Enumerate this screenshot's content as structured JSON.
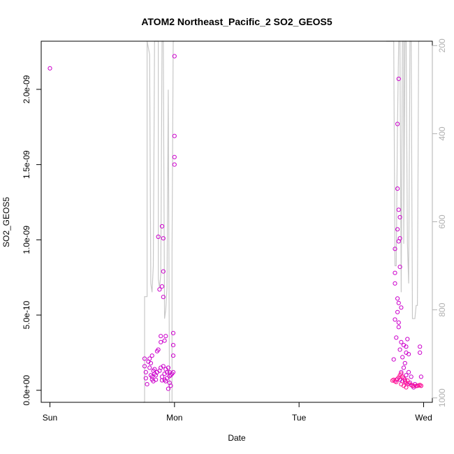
{
  "chart_data": {
    "type": "scatter",
    "title": "ATOM2 Northeast_Pacific_2 SO2_GEOS5",
    "xlabel": "Date",
    "ylabel": "SO2_GEOS5",
    "x_ticks": [
      {
        "value": 0,
        "label": "Sun"
      },
      {
        "value": 1,
        "label": "Mon"
      },
      {
        "value": 2,
        "label": "Tue"
      },
      {
        "value": 3,
        "label": "Wed"
      }
    ],
    "y_ticks": [
      {
        "value": 0,
        "label": "0.0e+00"
      },
      {
        "value": 5e-10,
        "label": "5.0e-10"
      },
      {
        "value": 1e-09,
        "label": "1.0e-09"
      },
      {
        "value": 1.5e-09,
        "label": "1.5e-09"
      },
      {
        "value": 2e-09,
        "label": "2.0e-09"
      }
    ],
    "y2_ticks": [
      {
        "value": 200,
        "label": "200"
      },
      {
        "value": 400,
        "label": "400"
      },
      {
        "value": 600,
        "label": "600"
      },
      {
        "value": 800,
        "label": "800"
      },
      {
        "value": 1000,
        "label": "1000"
      }
    ],
    "xlim": [
      -0.07,
      3.07
    ],
    "ylim": [
      -8e-11,
      2.32e-09
    ],
    "y2lim": [
      1010,
      190
    ],
    "colors": {
      "points": "#cc00cc",
      "points_alt": "#ff1493",
      "line": "#c8c8c8",
      "right_axis": "#b0b0b0"
    },
    "series": [
      {
        "marker": "circle",
        "axis": "left",
        "points": [
          [
            0.0,
            2.14e-09
          ],
          [
            0.76,
            2.1e-10
          ],
          [
            0.76,
            1.6e-10
          ],
          [
            0.77,
            1.2e-10
          ],
          [
            0.77,
            8e-11
          ],
          [
            0.78,
            4e-11
          ],
          [
            0.79,
            1.9e-10
          ],
          [
            0.8,
            2.1e-10
          ],
          [
            0.8,
            1.5e-10
          ],
          [
            0.81,
            1.8e-10
          ],
          [
            0.81,
            1e-10
          ],
          [
            0.82,
            2.3e-10
          ],
          [
            0.82,
            9e-11
          ],
          [
            0.83,
            1.3e-10
          ],
          [
            0.83,
            6e-11
          ],
          [
            0.84,
            1.1e-10
          ],
          [
            0.84,
            1.4e-10
          ],
          [
            0.85,
            1e-10
          ],
          [
            0.85,
            7e-11
          ],
          [
            0.86,
            2.6e-10
          ],
          [
            0.86,
            1.2e-10
          ],
          [
            0.87,
            2.7e-10
          ],
          [
            0.87,
            1.02e-09
          ],
          [
            0.88,
            6.7e-10
          ],
          [
            0.88,
            1.3e-10
          ],
          [
            0.89,
            3.6e-10
          ],
          [
            0.89,
            3.2e-10
          ],
          [
            0.89,
            1.5e-10
          ],
          [
            0.9,
            1.09e-09
          ],
          [
            0.9,
            6.9e-10
          ],
          [
            0.9,
            9e-11
          ],
          [
            0.91,
            1.01e-09
          ],
          [
            0.91,
            7.9e-10
          ],
          [
            0.91,
            6.2e-10
          ],
          [
            0.91,
            1.6e-10
          ],
          [
            0.92,
            3.3e-10
          ],
          [
            0.92,
            1.1e-10
          ],
          [
            0.92,
            7e-11
          ],
          [
            0.93,
            3.6e-10
          ],
          [
            0.93,
            1.4e-10
          ],
          [
            0.93,
            6e-11
          ],
          [
            0.94,
            1.2e-10
          ],
          [
            0.94,
            8e-11
          ],
          [
            0.95,
            1.5e-10
          ],
          [
            0.95,
            1e-11
          ],
          [
            0.96,
            5e-11
          ],
          [
            0.96,
            1.2e-10
          ],
          [
            0.97,
            1e-10
          ],
          [
            0.97,
            3e-11
          ],
          [
            0.98,
            1.1e-10
          ],
          [
            0.99,
            3.8e-10
          ],
          [
            0.99,
            3e-10
          ],
          [
            0.99,
            2.3e-10
          ],
          [
            0.99,
            1.2e-10
          ],
          [
            1.0,
            2.22e-09
          ],
          [
            1.0,
            1.69e-09
          ],
          [
            1.0,
            1.55e-09
          ],
          [
            1.0,
            1.5e-09
          ],
          [
            0.9,
            6.6e-11
          ],
          [
            0.82,
            7.2e-11
          ],
          [
            0.96,
            9.4e-11
          ],
          [
            2.76,
            2.05e-10
          ],
          [
            2.77,
            9.4e-10
          ],
          [
            2.77,
            7.8e-10
          ],
          [
            2.77,
            7.1e-10
          ],
          [
            2.77,
            4.7e-10
          ],
          [
            2.78,
            3.5e-10
          ],
          [
            2.78,
            7e-11
          ],
          [
            2.79,
            1.77e-09
          ],
          [
            2.79,
            1.34e-09
          ],
          [
            2.79,
            1.07e-09
          ],
          [
            2.79,
            6.1e-10
          ],
          [
            2.79,
            5.2e-10
          ],
          [
            2.8,
            2.07e-09
          ],
          [
            2.8,
            1.2e-09
          ],
          [
            2.8,
            9.9e-10
          ],
          [
            2.8,
            5.8e-10
          ],
          [
            2.8,
            4.5e-10
          ],
          [
            2.8,
            4.2e-10
          ],
          [
            2.81,
            1.15e-09
          ],
          [
            2.81,
            1.01e-09
          ],
          [
            2.81,
            8.2e-10
          ],
          [
            2.81,
            2.7e-10
          ],
          [
            2.81,
            7e-11
          ],
          [
            2.82,
            5.5e-10
          ],
          [
            2.82,
            3.2e-10
          ],
          [
            2.82,
            1.2e-10
          ],
          [
            2.83,
            2.2e-10
          ],
          [
            2.83,
            6e-11
          ],
          [
            2.84,
            3e-10
          ],
          [
            2.84,
            1.5e-10
          ],
          [
            2.85,
            1.8e-10
          ],
          [
            2.85,
            7e-11
          ],
          [
            2.86,
            2.5e-10
          ],
          [
            2.86,
            2.9e-10
          ],
          [
            2.86,
            1e-10
          ],
          [
            2.87,
            3.4e-10
          ],
          [
            2.87,
            4e-11
          ],
          [
            2.88,
            2.4e-10
          ],
          [
            2.88,
            1.2e-10
          ],
          [
            2.89,
            5e-11
          ],
          [
            2.9,
            9e-11
          ],
          [
            2.91,
            3e-11
          ],
          [
            2.92,
            2e-11
          ],
          [
            2.93,
            4e-11
          ],
          [
            2.95,
            3e-11
          ],
          [
            2.97,
            2.9e-10
          ],
          [
            2.97,
            2.5e-10
          ],
          [
            2.98,
            9e-11
          ],
          [
            2.98,
            3e-11
          ]
        ]
      },
      {
        "marker": "circle",
        "axis": "left",
        "points": [
          [
            2.75,
            6.5e-11
          ],
          [
            2.76,
            7e-11
          ],
          [
            2.77,
            6e-11
          ],
          [
            2.78,
            5.5e-11
          ],
          [
            2.79,
            7.5e-11
          ],
          [
            2.8,
            8.5e-11
          ],
          [
            2.81,
            1e-10
          ],
          [
            2.82,
            1.1e-10
          ],
          [
            2.83,
            9e-11
          ],
          [
            2.84,
            8e-11
          ],
          [
            2.85,
            6e-11
          ],
          [
            2.86,
            5e-11
          ],
          [
            2.87,
            6.5e-11
          ],
          [
            2.88,
            4.5e-11
          ],
          [
            2.9,
            3.5e-11
          ],
          [
            2.92,
            3e-11
          ],
          [
            2.94,
            2.8e-11
          ],
          [
            2.96,
            3.2e-11
          ],
          [
            2.97,
            3.5e-11
          ],
          [
            2.98,
            3e-11
          ],
          [
            2.84,
            3e-11
          ],
          [
            2.86,
            2e-11
          ],
          [
            2.82,
            4e-11
          ]
        ]
      },
      {
        "marker": "line",
        "axis": "right",
        "points": [
          [
            0.75,
            1010
          ],
          [
            0.76,
            1010
          ],
          [
            0.76,
            770
          ],
          [
            0.77,
            770
          ],
          [
            0.78,
            770
          ],
          [
            0.78,
            190
          ],
          [
            0.8,
            220
          ],
          [
            0.81,
            740
          ],
          [
            0.82,
            760
          ],
          [
            0.83,
            700
          ],
          [
            0.84,
            190
          ],
          [
            0.87,
            190
          ],
          [
            0.87,
            730
          ],
          [
            0.88,
            750
          ],
          [
            0.89,
            720
          ],
          [
            0.9,
            190
          ],
          [
            0.91,
            190
          ],
          [
            0.92,
            820
          ],
          [
            0.93,
            800
          ],
          [
            0.94,
            750
          ],
          [
            0.95,
            300
          ],
          [
            0.96,
            1010
          ],
          [
            0.98,
            1010
          ],
          [
            0.98,
            670
          ],
          [
            0.99,
            190
          ],
          [
            1.0,
            190
          ],
          [
            2.7,
            190
          ],
          [
            2.76,
            190
          ],
          [
            2.77,
            700
          ],
          [
            2.78,
            700
          ],
          [
            2.79,
            380
          ],
          [
            2.8,
            190
          ],
          [
            2.81,
            190
          ],
          [
            2.82,
            760
          ],
          [
            2.83,
            190
          ],
          [
            2.84,
            190
          ],
          [
            2.84,
            650
          ],
          [
            2.85,
            190
          ],
          [
            2.86,
            190
          ],
          [
            2.87,
            650
          ],
          [
            2.88,
            740
          ],
          [
            2.89,
            190
          ],
          [
            2.9,
            190
          ],
          [
            2.91,
            820
          ],
          [
            2.93,
            820
          ],
          [
            2.94,
            790
          ],
          [
            2.95,
            790
          ],
          [
            2.96,
            190
          ],
          [
            2.97,
            190
          ]
        ]
      }
    ]
  }
}
